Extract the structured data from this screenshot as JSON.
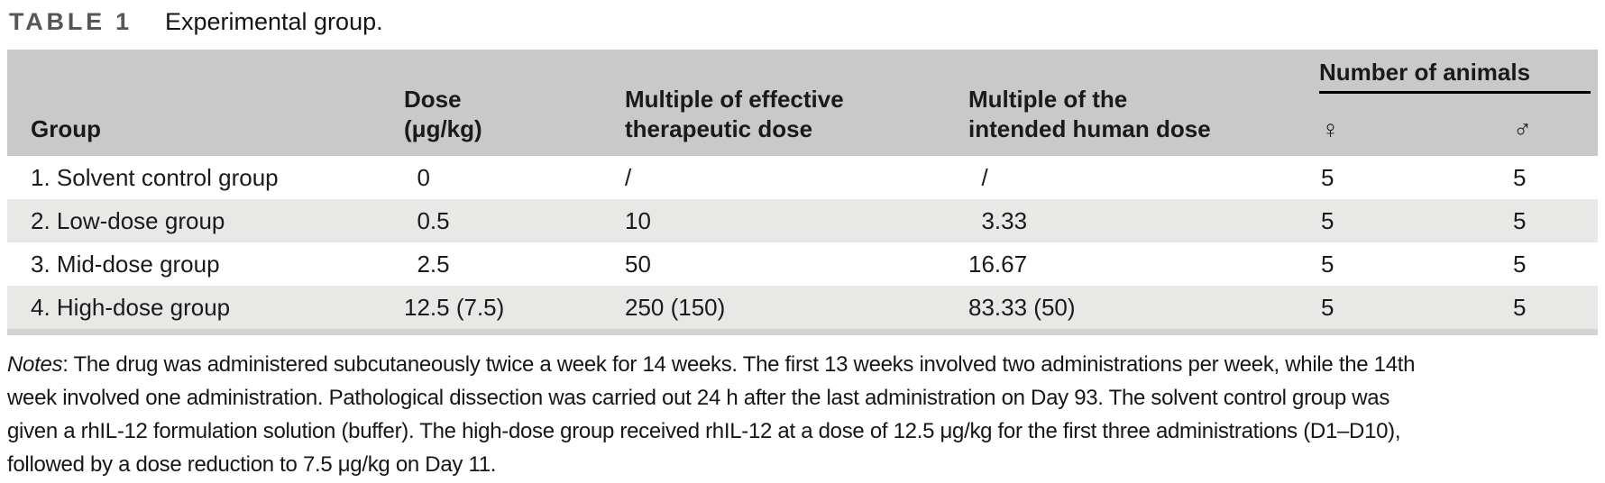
{
  "title": {
    "tag": "TABLE 1",
    "caption": "Experimental group."
  },
  "table": {
    "header": {
      "group": "Group",
      "dose_line1": "Dose",
      "dose_line2": "(μg/kg)",
      "effective_line1": "Multiple of effective",
      "effective_line2": "therapeutic dose",
      "human_line1": "Multiple of the",
      "human_line2": "intended human dose",
      "animals": "Number of animals",
      "female_symbol": "♀",
      "male_symbol": "♂"
    },
    "rows": [
      {
        "group": "1. Solvent control group",
        "dose": "0",
        "multiple_effective": "/",
        "multiple_human": "/",
        "female": "5",
        "male": "5"
      },
      {
        "group": "2. Low-dose group",
        "dose": "0.5",
        "multiple_effective": "10",
        "multiple_human": "3.33",
        "female": "5",
        "male": "5"
      },
      {
        "group": "3. Mid-dose group",
        "dose": "2.5",
        "multiple_effective": "50",
        "multiple_human": "16.67",
        "female": "5",
        "male": "5"
      },
      {
        "group": "4. High-dose group",
        "dose": "12.5 (7.5)",
        "multiple_effective": "250 (150)",
        "multiple_human": "83.33 (50)",
        "female": "5",
        "male": "5"
      }
    ]
  },
  "notes": {
    "label": "Notes",
    "separator": ": ",
    "lines": [
      "The drug was administered subcutaneously twice a week for 14 weeks. The first 13 weeks involved two administrations per week, while the 14th",
      "week involved one administration. Pathological dissection was carried out 24 h after the last administration on Day 93. The solvent control group was",
      "given a rhIL-12 formulation solution (buffer). The high-dose group received rhIL-12 at a dose of 12.5 μg/kg for the first three administrations (D1–D10),",
      "followed by a dose reduction to 7.5 μg/kg on Day 11."
    ]
  }
}
